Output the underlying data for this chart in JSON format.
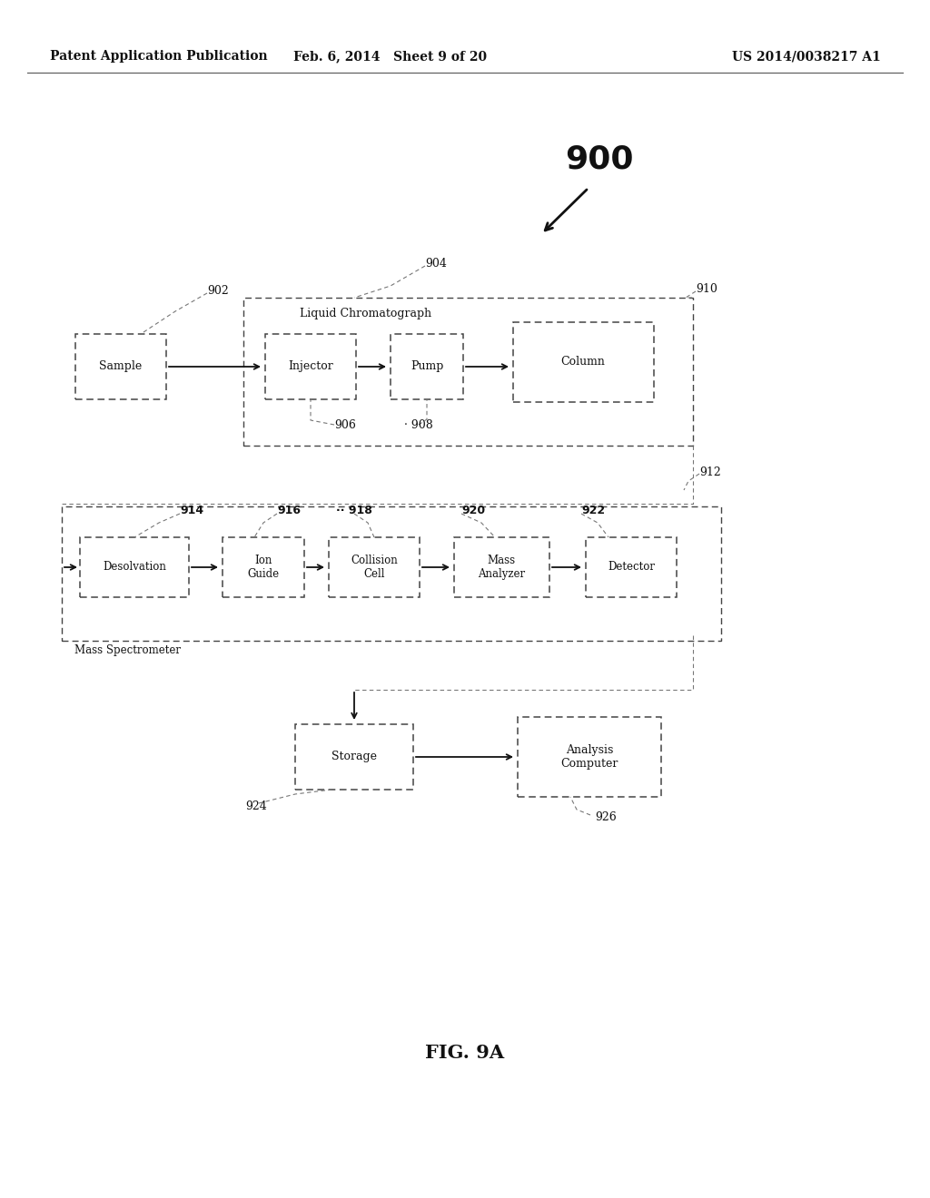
{
  "bg_color": "#ffffff",
  "header_left": "Patent Application Publication",
  "header_mid": "Feb. 6, 2014   Sheet 9 of 20",
  "header_right": "US 2014/0038217 A1",
  "fig_label": "FIG. 9A"
}
